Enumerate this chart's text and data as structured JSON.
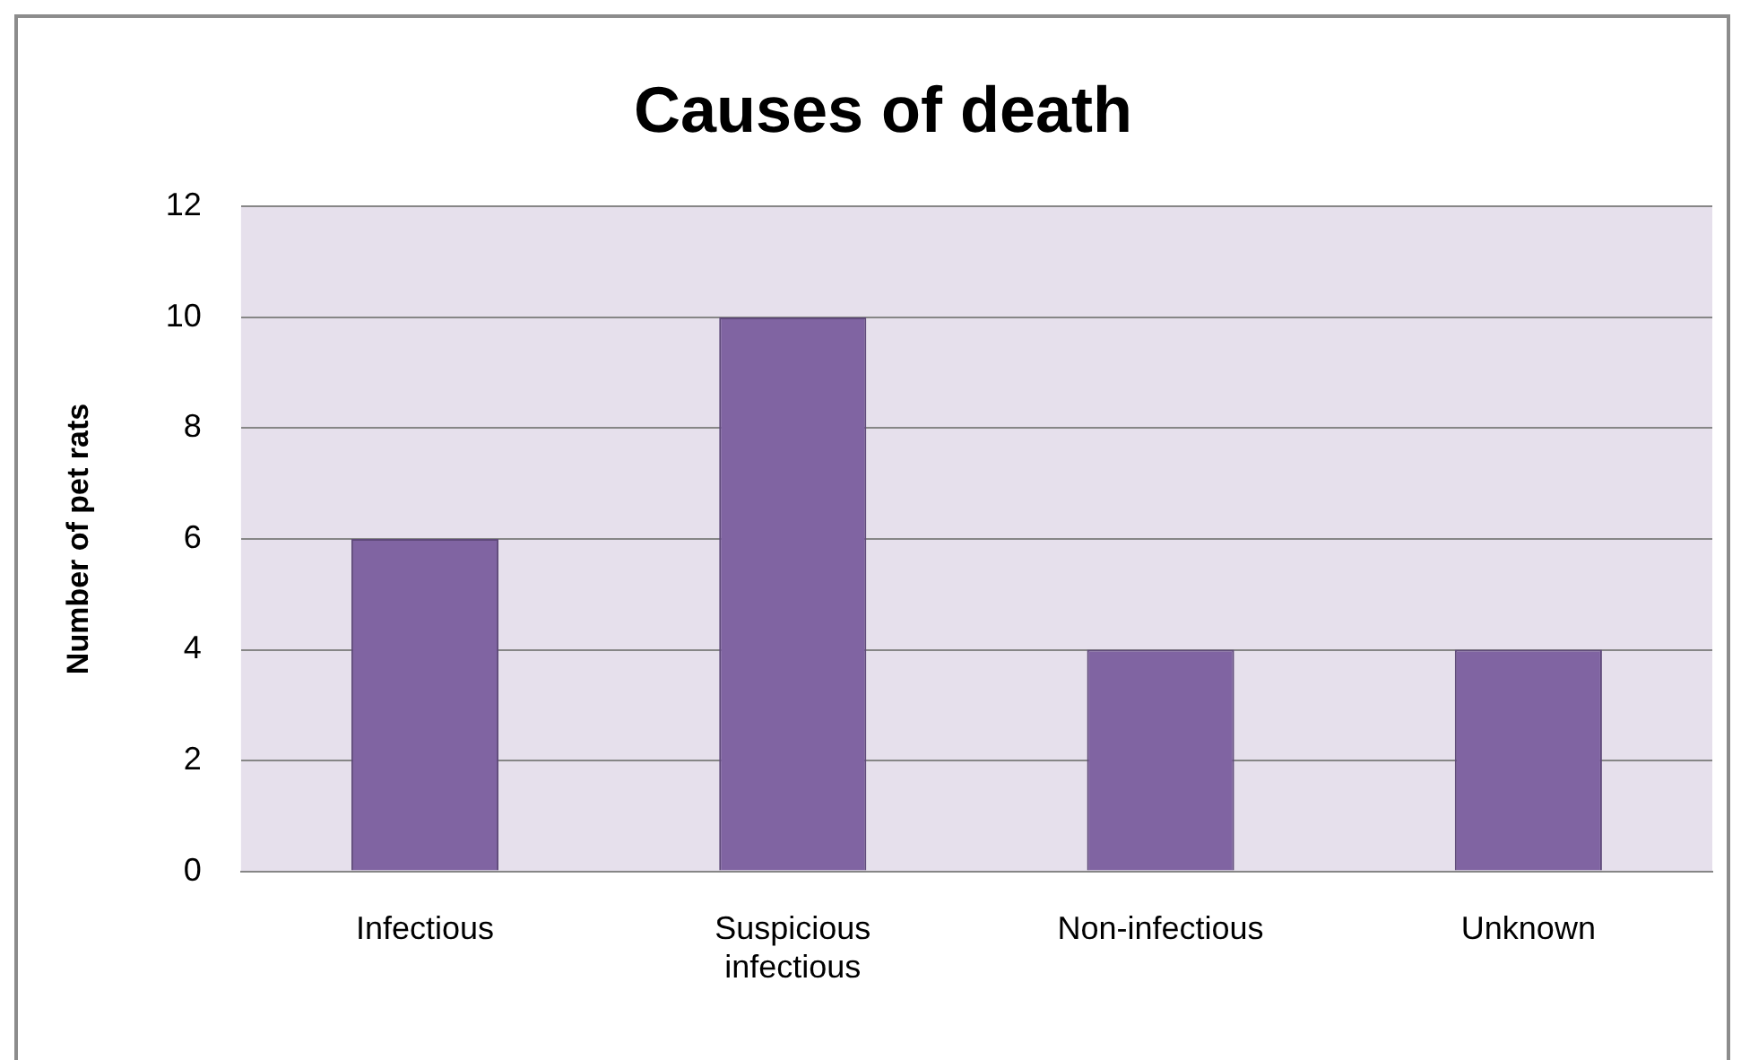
{
  "chart_data": {
    "type": "bar",
    "title": "Causes of death",
    "ylabel": "Number of pet rats",
    "categories": [
      "Infectious",
      "Suspicious infectious",
      "Non-infectious",
      "Unknown"
    ],
    "values": [
      6,
      10,
      4,
      4
    ],
    "color": "#8064a2",
    "ylim": [
      0,
      12
    ],
    "yticks": [
      0,
      2,
      4,
      6,
      8,
      10,
      12
    ],
    "grid": "y",
    "legend": false
  }
}
